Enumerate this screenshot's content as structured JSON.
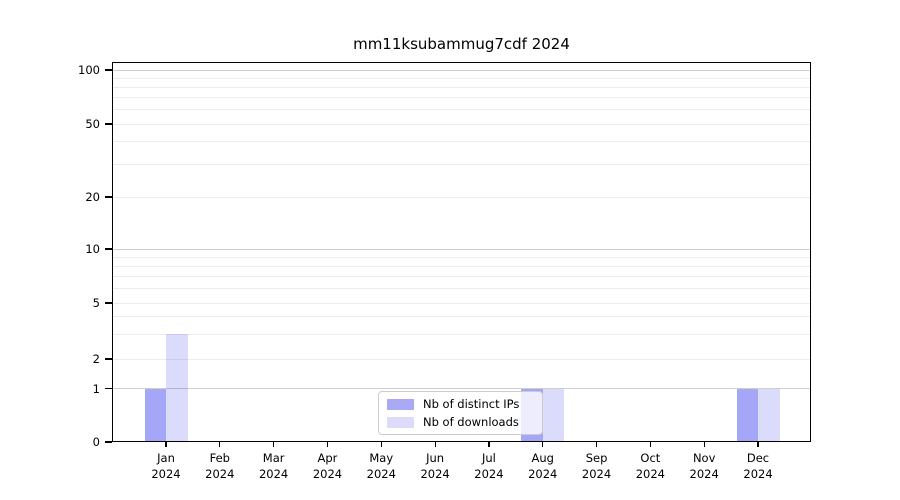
{
  "chart_data": {
    "type": "bar",
    "title": "mm11ksubammug7cdf 2024",
    "categories": [
      "Jan",
      "Feb",
      "Mar",
      "Apr",
      "May",
      "Jun",
      "Jul",
      "Aug",
      "Sep",
      "Oct",
      "Nov",
      "Dec"
    ],
    "year_label": "2024",
    "series": [
      {
        "name": "Nb of distinct IPs",
        "color": "rgba(0,0,235,0.35)",
        "legend_color": "#a9a9f6",
        "values": [
          1,
          0,
          0,
          0,
          0,
          0,
          0,
          1,
          0,
          0,
          0,
          1
        ]
      },
      {
        "name": "Nb of downloads",
        "color": "rgba(0,0,235,0.14)",
        "legend_color": "#dcdcfa",
        "values": [
          3,
          0,
          0,
          0,
          0,
          0,
          0,
          1,
          0,
          0,
          0,
          1
        ]
      }
    ],
    "ylabel": "",
    "xlabel": "",
    "y_scale": "symlog",
    "ylim": [
      0,
      100
    ],
    "y_tick_labels": [
      "100",
      "50",
      "20",
      "10",
      "5",
      "2",
      "1",
      "0"
    ],
    "y_tick_values": [
      100,
      50,
      20,
      10,
      5,
      2,
      1,
      0
    ],
    "minor_grid_values": [
      2,
      3,
      4,
      5,
      6,
      7,
      8,
      9,
      20,
      30,
      40,
      50,
      60,
      70,
      80,
      90
    ],
    "major_grid_values": [
      1,
      10,
      100
    ],
    "grid": "horizontal",
    "legend_position": "lower center"
  },
  "colors": {
    "minor_grid": "#ececec",
    "major_grid": "#cfcfcf",
    "axis": "#000000",
    "background": "#ffffff"
  }
}
